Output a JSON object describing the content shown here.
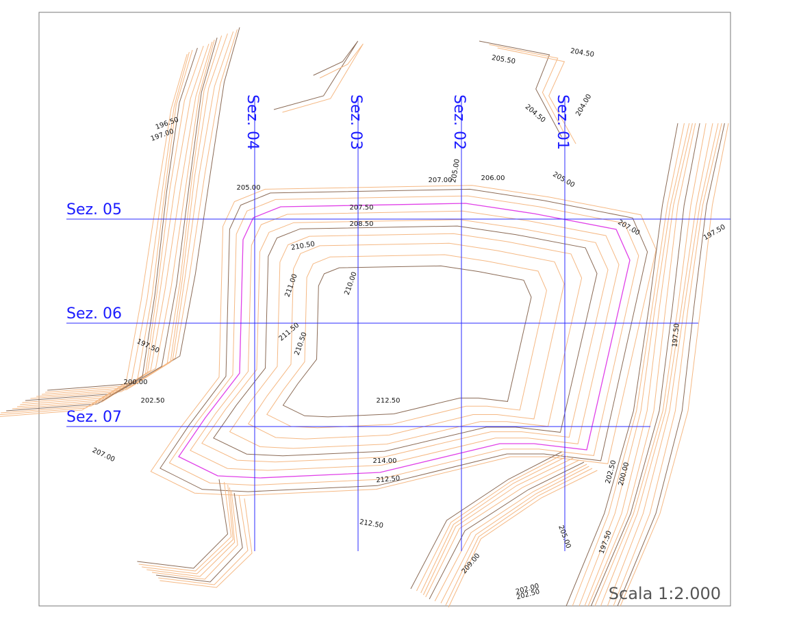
{
  "sections": {
    "vertical": [
      "Sez. 04",
      "Sez. 03",
      "Sez. 02",
      "Sez. 01"
    ],
    "horizontal": [
      "Sez. 05",
      "Sez. 06",
      "Sez. 07"
    ]
  },
  "contour_labels": [
    "204.50",
    "205.50",
    "204.50",
    "204.00",
    "196.50",
    "197.00",
    "205.00",
    "207.00",
    "205.00",
    "206.00",
    "205.00",
    "207.50",
    "208.50",
    "207.00",
    "197.50",
    "210.50",
    "211.00",
    "210.00",
    "211.50",
    "210.50",
    "197.50",
    "197.50",
    "200.00",
    "202.50",
    "212.50",
    "207.00",
    "214.00",
    "212.50",
    "202.50",
    "200.00",
    "212.50",
    "205.00",
    "197.50",
    "209.00",
    "202.00",
    "202.50"
  ],
  "scale": "Scala 1:2.000"
}
